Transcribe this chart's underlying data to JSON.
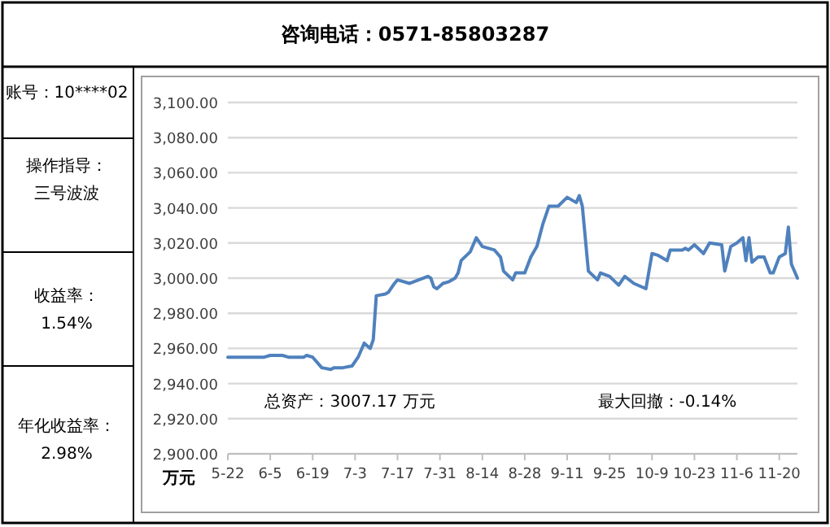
{
  "chart_data": {
    "type": "line",
    "title": "咨询电话：0571-85803287",
    "ylabel": "万元",
    "annotations": [
      "账号：10****02",
      "操作指导：",
      "三号波波",
      "收益率：",
      "1.54%",
      "年化收益率：",
      "2.98%",
      "总资产：3007.17 万元",
      "最大回撤：-0.14%"
    ],
    "x": [
      "--05-22",
      "--06-03",
      "--06-05",
      "--06-09",
      "--06-11",
      "--06-13",
      "--06-16",
      "--06-17",
      "--06-19",
      "--06-22",
      "--06-25",
      "--06-26",
      "--06-29",
      "--07-02",
      "--07-04",
      "--07-06",
      "--07-08",
      "--07-09",
      "--07-10",
      "--07-13",
      "--07-14",
      "--07-16",
      "--07-17",
      "--07-21",
      "--07-24",
      "--07-27",
      "--07-28",
      "--07-29",
      "--07-30",
      "--08-01",
      "--08-03",
      "--08-05",
      "--08-06",
      "--08-07",
      "--08-10",
      "--08-12",
      "--08-14",
      "--08-18",
      "--08-20",
      "--08-21",
      "--08-24",
      "--08-25",
      "--08-28",
      "--08-30",
      "--09-01",
      "--09-03",
      "--09-05",
      "--09-08",
      "--09-11",
      "--09-14",
      "--09-15",
      "--09-16",
      "--09-18",
      "--09-21",
      "--09-22",
      "--09-25",
      "--09-28",
      "--09-30",
      "--10-03",
      "--10-07",
      "--10-09",
      "--10-11",
      "--10-14",
      "--10-15",
      "--10-19",
      "--10-20",
      "--10-21",
      "--10-23",
      "--10-26",
      "--10-28",
      "--11-01",
      "--11-02",
      "--11-04",
      "--11-06",
      "--11-08",
      "--11-09",
      "--11-10",
      "--11-11",
      "--11-13",
      "--11-15",
      "--11-17",
      "--11-18",
      "--11-20",
      "--11-22",
      "--11-23",
      "--11-24",
      "--11-26"
    ],
    "series": [
      {
        "color": "#4f81bd",
        "values": [
          2955,
          2955,
          2956,
          2956,
          2955,
          2955,
          2955,
          2956,
          2955,
          2949,
          2948,
          2949,
          2949,
          2950,
          2955,
          2963,
          2960,
          2965,
          2990,
          2991,
          2992,
          2997,
          2999,
          2997,
          2999,
          3001,
          3000,
          2995,
          2994,
          2997,
          2998,
          3000,
          3003,
          3010,
          3015,
          3023,
          3018,
          3016,
          3012,
          3004,
          2999,
          3003,
          3003,
          3012,
          3018,
          3031,
          3041,
          3041,
          3046,
          3043,
          3047,
          3041,
          3004,
          2999,
          3003,
          3001,
          2996,
          3001,
          2997,
          2994,
          3014,
          3013,
          3010,
          3016,
          3016,
          3017,
          3016,
          3019,
          3014,
          3020,
          3019,
          3004,
          3018,
          3020,
          3023,
          3010,
          3023,
          3009,
          3012,
          3012,
          3003,
          3003,
          3012,
          3014,
          3029,
          3008,
          3000
        ]
      }
    ],
    "xlim": [
      "--05-22",
      "--11-26"
    ],
    "xticks": [
      {
        "value": "--05-22",
        "label": "5-22"
      },
      {
        "value": "--06-05",
        "label": "6-5"
      },
      {
        "value": "--06-19",
        "label": "6-19"
      },
      {
        "value": "--07-03",
        "label": "7-3"
      },
      {
        "value": "--07-17",
        "label": "7-17"
      },
      {
        "value": "--07-31",
        "label": "7-31"
      },
      {
        "value": "--08-14",
        "label": "8-14"
      },
      {
        "value": "--08-28",
        "label": "8-28"
      },
      {
        "value": "--09-11",
        "label": "9-11"
      },
      {
        "value": "--09-25",
        "label": "9-25"
      },
      {
        "value": "--10-09",
        "label": "10-9"
      },
      {
        "value": "--10-23",
        "label": "10-23"
      },
      {
        "value": "--11-06",
        "label": "11-6"
      },
      {
        "value": "--11-20",
        "label": "11-20"
      }
    ],
    "ylim": [
      2900,
      3100
    ],
    "yticks": [
      {
        "value": 2900,
        "label": "2,900.00"
      },
      {
        "value": 2920,
        "label": "2,920.00"
      },
      {
        "value": 2940,
        "label": "2,940.00"
      },
      {
        "value": 2960,
        "label": "2,960.00"
      },
      {
        "value": 2980,
        "label": "2,980.00"
      },
      {
        "value": 3000,
        "label": "3,000.00"
      },
      {
        "value": 3020,
        "label": "3,020.00"
      },
      {
        "value": 3040,
        "label": "3,040.00"
      },
      {
        "value": 3060,
        "label": "3,060.00"
      },
      {
        "value": 3080,
        "label": "3,080.00"
      },
      {
        "value": 3100,
        "label": "3,100.00"
      }
    ],
    "grid": "y",
    "marker": "none",
    "line_style": "solid"
  }
}
